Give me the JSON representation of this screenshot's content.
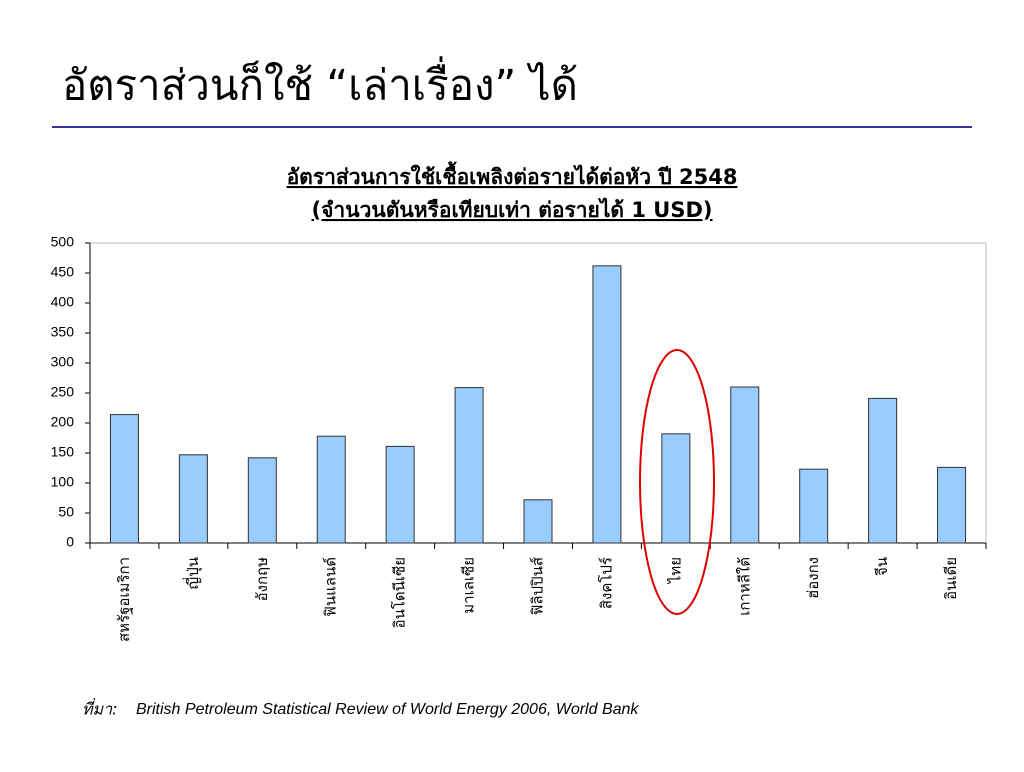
{
  "slide_title": "อัตราส่วนก็ใช้ “เล่าเรื่อง” ได้",
  "source_label": "ที่มา:",
  "source": "British Petroleum Statistical Review of World Energy 2006, World Bank",
  "chart_data": {
    "type": "bar",
    "title": "อัตราส่วนการใช้เชื้อเพลิงต่อรายได้ต่อหัว ปี 2548",
    "subtitle": "(จำนวนตันหรือเทียบเท่า ต่อรายได้ 1 USD)",
    "categories": [
      "สหรัฐอเมริกา",
      "ญี่ปุ่น",
      "อังกฤษ",
      "ฟินแลนด์",
      "อินโดนีเซีย",
      "มาเลเซีย",
      "ฟิลิปปินส์",
      "สิงคโปร์",
      "ไทย",
      "เกาหลีใต้",
      "ฮ่องกง",
      "จีน",
      "อินเดีย"
    ],
    "values": [
      214,
      147,
      142,
      178,
      161,
      259,
      72,
      462,
      182,
      260,
      123,
      241,
      126
    ],
    "color": "#99ccff",
    "ylim": [
      0,
      500
    ],
    "yticks": [
      0,
      50,
      100,
      150,
      200,
      250,
      300,
      350,
      400,
      450,
      500
    ],
    "grid": false
  }
}
